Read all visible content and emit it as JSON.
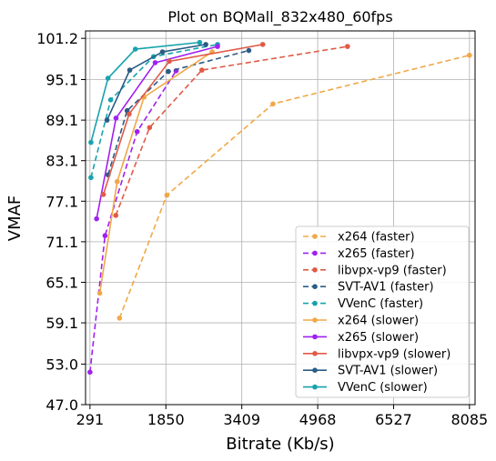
{
  "chart_data": {
    "type": "line",
    "title": "Plot on BQMall_832x480_60fps",
    "xlabel": "Bitrate (Kb/s)",
    "ylabel": "VMAF",
    "xlim": [
      200,
      8200
    ],
    "ylim": [
      47.0,
      102.3
    ],
    "xticks": [
      291,
      1850,
      3409,
      4968,
      6527,
      8085
    ],
    "xtick_labels": [
      "291",
      "1850",
      "3409",
      "4968",
      "6527",
      "8085"
    ],
    "yticks": [
      47.0,
      53.0,
      59.1,
      65.1,
      71.1,
      77.1,
      83.1,
      89.1,
      95.1,
      101.2
    ],
    "ytick_labels": [
      "47.0",
      "53.0",
      "59.1",
      "65.1",
      "71.1",
      "77.1",
      "83.1",
      "89.1",
      "95.1",
      "101.2"
    ],
    "grid": true,
    "legend_position": "lower-right",
    "series": [
      {
        "name": "x264 (faster)",
        "color": "#f0a848",
        "dash": "dashed",
        "x": [
          898,
          1870,
          4050,
          8085
        ],
        "y": [
          59.8,
          78.0,
          91.5,
          98.7
        ]
      },
      {
        "name": "x265 (faster)",
        "color": "#a020f0",
        "dash": "dashed",
        "x": [
          291,
          600,
          1260,
          2060
        ],
        "y": [
          51.8,
          72.0,
          87.4,
          96.4
        ]
      },
      {
        "name": "libvpx-vp9 (faster)",
        "color": "#e05a47",
        "dash": "dashed",
        "x": [
          821,
          1515,
          2589,
          5580
        ],
        "y": [
          75.0,
          88.0,
          96.5,
          100.0
        ]
      },
      {
        "name": "SVT-AV1 (faster)",
        "color": "#2b5c85",
        "dash": "dashed",
        "x": [
          663,
          1054,
          1900,
          3554
        ],
        "y": [
          81.0,
          90.5,
          96.3,
          99.4
        ]
      },
      {
        "name": "VVenC (faster)",
        "color": "#17a3ae",
        "dash": "dashed",
        "x": [
          311,
          716,
          1597,
          2912
        ],
        "y": [
          80.6,
          92.1,
          98.5,
          100.3
        ]
      },
      {
        "name": "x264 (slower)",
        "color": "#f0a848",
        "dash": "solid",
        "x": [
          492,
          850,
          1400,
          2800
        ],
        "y": [
          63.5,
          80.0,
          92.5,
          99.2
        ]
      },
      {
        "name": "x265 (slower)",
        "color": "#a020f0",
        "dash": "solid",
        "x": [
          427,
          826,
          1630,
          2910
        ],
        "y": [
          74.5,
          89.4,
          97.6,
          100.0
        ]
      },
      {
        "name": "libvpx-vp9 (slower)",
        "color": "#e05a47",
        "dash": "solid",
        "x": [
          566,
          1095,
          1920,
          3840
        ],
        "y": [
          78.1,
          90.0,
          97.8,
          100.3
        ]
      },
      {
        "name": "SVT-AV1 (slower)",
        "color": "#2b5c85",
        "dash": "solid",
        "x": [
          641,
          1108,
          1780,
          2670
        ],
        "y": [
          89.1,
          96.5,
          99.2,
          100.3
        ]
      },
      {
        "name": "VVenC (slower)",
        "color": "#17a3ae",
        "dash": "solid",
        "x": [
          311,
          661,
          1223,
          2544
        ],
        "y": [
          85.8,
          95.3,
          99.6,
          100.6
        ]
      }
    ]
  }
}
